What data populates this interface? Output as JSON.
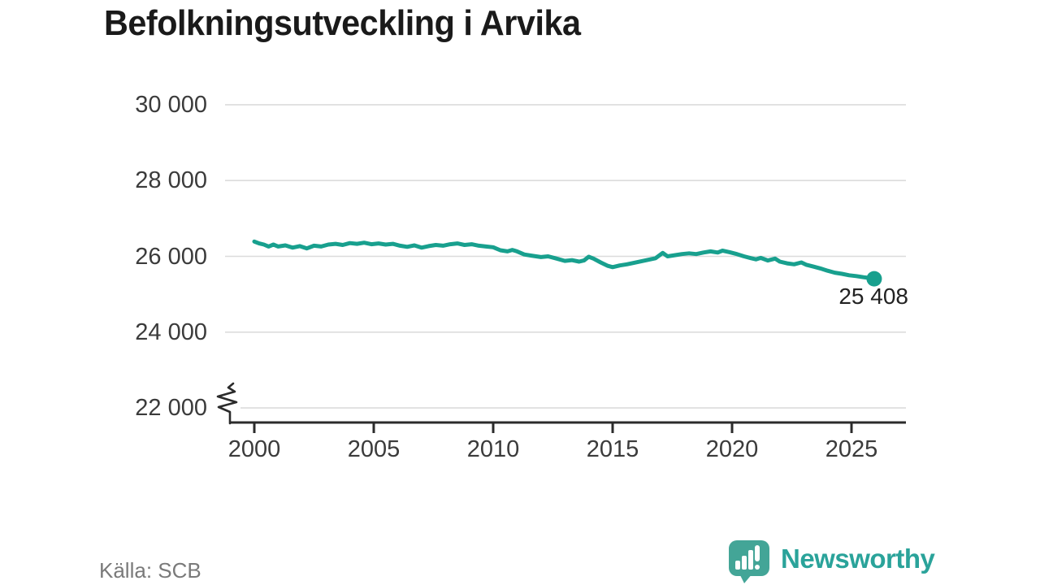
{
  "title": "Befolkningsutveckling i Arvika",
  "source": "Källa: SCB",
  "brand": {
    "name": "Newsworthy"
  },
  "colors": {
    "line": "#18a08e",
    "grid": "#dcdcdc",
    "axis": "#2b2b2b",
    "tick_label": "#3b3b3b",
    "title": "#1a1a1a",
    "source": "#7a7a7a",
    "brand_text": "#2aa39a",
    "brand_icon": "#43a597"
  },
  "chart_data": {
    "type": "line",
    "title": "Befolkningsutveckling i Arvika",
    "xlabel": "",
    "ylabel": "",
    "grid": "horizontal",
    "y_axis_break": true,
    "ylim": [
      21600,
      30600
    ],
    "x_range": [
      2000,
      2027.2
    ],
    "y_ticks": [
      {
        "value": 30000,
        "label": "30 000"
      },
      {
        "value": 28000,
        "label": "28 000"
      },
      {
        "value": 26000,
        "label": "26 000"
      },
      {
        "value": 24000,
        "label": "24 000"
      },
      {
        "value": 22000,
        "label": "22 000"
      }
    ],
    "x_ticks": [
      {
        "value": 2000,
        "label": "2000"
      },
      {
        "value": 2005,
        "label": "2005"
      },
      {
        "value": 2010,
        "label": "2010"
      },
      {
        "value": 2015,
        "label": "2015"
      },
      {
        "value": 2020,
        "label": "2020"
      },
      {
        "value": 2025,
        "label": "2025"
      }
    ],
    "last_point_label": "25 408",
    "last_point_value": 25408,
    "series": [
      {
        "name": "Befolkning",
        "points": [
          [
            2000.0,
            26390
          ],
          [
            2000.2,
            26340
          ],
          [
            2000.4,
            26310
          ],
          [
            2000.6,
            26260
          ],
          [
            2000.8,
            26310
          ],
          [
            2001.0,
            26260
          ],
          [
            2001.3,
            26290
          ],
          [
            2001.6,
            26230
          ],
          [
            2001.9,
            26270
          ],
          [
            2002.2,
            26210
          ],
          [
            2002.5,
            26280
          ],
          [
            2002.8,
            26260
          ],
          [
            2003.1,
            26310
          ],
          [
            2003.4,
            26330
          ],
          [
            2003.7,
            26300
          ],
          [
            2004.0,
            26350
          ],
          [
            2004.3,
            26330
          ],
          [
            2004.6,
            26360
          ],
          [
            2004.9,
            26320
          ],
          [
            2005.2,
            26340
          ],
          [
            2005.5,
            26310
          ],
          [
            2005.8,
            26330
          ],
          [
            2006.1,
            26280
          ],
          [
            2006.4,
            26250
          ],
          [
            2006.7,
            26290
          ],
          [
            2007.0,
            26230
          ],
          [
            2007.3,
            26270
          ],
          [
            2007.6,
            26300
          ],
          [
            2007.9,
            26280
          ],
          [
            2008.2,
            26320
          ],
          [
            2008.5,
            26340
          ],
          [
            2008.8,
            26300
          ],
          [
            2009.1,
            26320
          ],
          [
            2009.4,
            26280
          ],
          [
            2009.7,
            26260
          ],
          [
            2010.0,
            26240
          ],
          [
            2010.3,
            26160
          ],
          [
            2010.6,
            26130
          ],
          [
            2010.8,
            26170
          ],
          [
            2011.0,
            26130
          ],
          [
            2011.3,
            26050
          ],
          [
            2011.6,
            26020
          ],
          [
            2012.0,
            25980
          ],
          [
            2012.3,
            26000
          ],
          [
            2012.6,
            25950
          ],
          [
            2013.0,
            25880
          ],
          [
            2013.3,
            25900
          ],
          [
            2013.6,
            25860
          ],
          [
            2013.8,
            25890
          ],
          [
            2014.0,
            25990
          ],
          [
            2014.2,
            25940
          ],
          [
            2014.5,
            25840
          ],
          [
            2014.8,
            25750
          ],
          [
            2015.0,
            25715
          ],
          [
            2015.3,
            25760
          ],
          [
            2015.6,
            25790
          ],
          [
            2015.9,
            25830
          ],
          [
            2016.2,
            25870
          ],
          [
            2016.5,
            25910
          ],
          [
            2016.8,
            25950
          ],
          [
            2017.1,
            26090
          ],
          [
            2017.3,
            26000
          ],
          [
            2017.6,
            26030
          ],
          [
            2017.9,
            26060
          ],
          [
            2018.2,
            26080
          ],
          [
            2018.5,
            26060
          ],
          [
            2018.8,
            26100
          ],
          [
            2019.1,
            26130
          ],
          [
            2019.4,
            26100
          ],
          [
            2019.6,
            26150
          ],
          [
            2019.9,
            26110
          ],
          [
            2020.2,
            26060
          ],
          [
            2020.5,
            26000
          ],
          [
            2020.8,
            25950
          ],
          [
            2021.0,
            25920
          ],
          [
            2021.2,
            25960
          ],
          [
            2021.5,
            25890
          ],
          [
            2021.8,
            25940
          ],
          [
            2022.0,
            25860
          ],
          [
            2022.3,
            25815
          ],
          [
            2022.6,
            25790
          ],
          [
            2022.9,
            25840
          ],
          [
            2023.1,
            25780
          ],
          [
            2023.4,
            25730
          ],
          [
            2023.7,
            25680
          ],
          [
            2024.0,
            25620
          ],
          [
            2024.3,
            25570
          ],
          [
            2024.6,
            25540
          ],
          [
            2024.9,
            25500
          ],
          [
            2025.2,
            25480
          ],
          [
            2025.5,
            25450
          ],
          [
            2025.75,
            25430
          ],
          [
            2025.95,
            25408
          ]
        ]
      }
    ]
  }
}
